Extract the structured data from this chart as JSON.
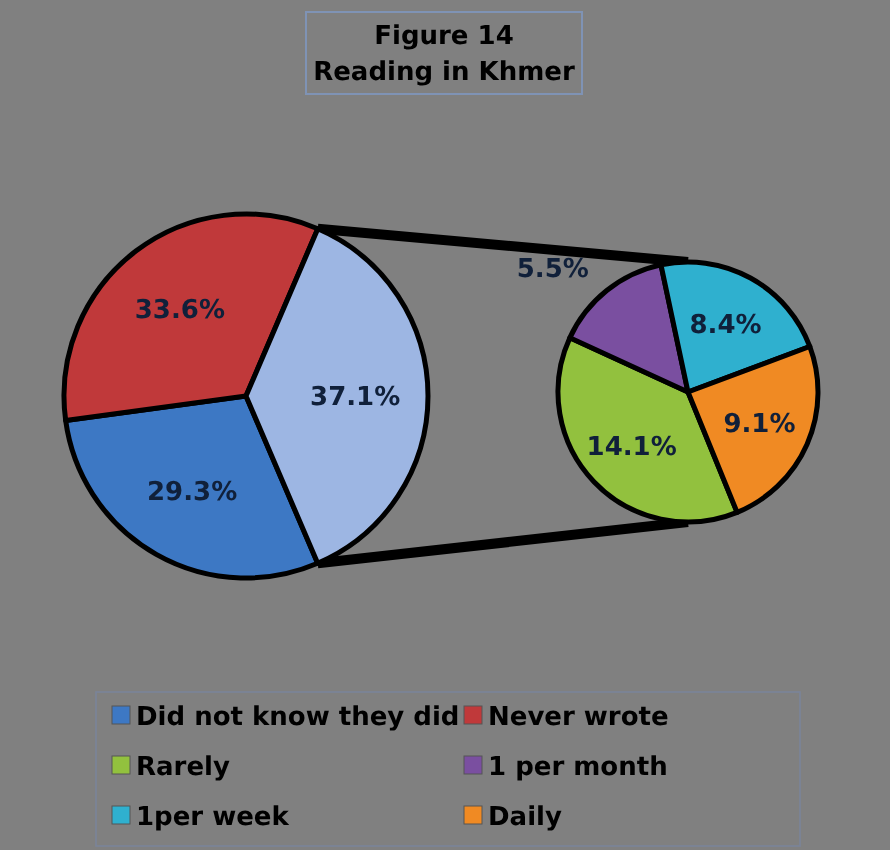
{
  "chart_data": [
    {
      "type": "pie",
      "title": "Figure 14",
      "subtitle": "Reading in Khmer",
      "categories": [
        "Did not know they did",
        "Never wrote",
        null
      ],
      "values": [
        29.3,
        33.6,
        37.1
      ],
      "colors": [
        "#3d78c4",
        "#c0393a",
        "#9db6e3"
      ],
      "value_labels": [
        "29.3%",
        "33.6%",
        "37.1%"
      ],
      "legend": "bottom"
    },
    {
      "type": "pie",
      "categories": [
        "Rarely",
        "1 per month",
        "1per week",
        "Daily"
      ],
      "values": [
        14.1,
        5.5,
        8.4,
        9.1
      ],
      "colors": [
        "#92c13e",
        "#7a4fa0",
        "#2fb0cf",
        "#f08a23"
      ],
      "value_labels": [
        "14.1%",
        "5.5%",
        "8.4%",
        "9.1%"
      ],
      "legend": "bottom"
    }
  ]
}
